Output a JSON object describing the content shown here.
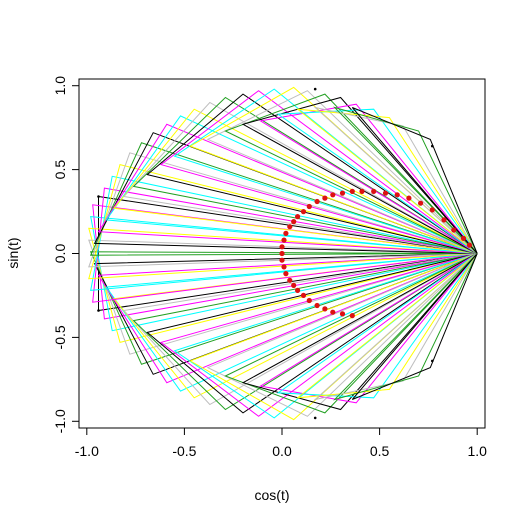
{
  "chart_data": {
    "type": "line",
    "title": "",
    "xlabel": "cos(t)",
    "ylabel": "sin(t)",
    "xlim": [
      -1.04,
      1.04
    ],
    "ylim": [
      -1.04,
      1.04
    ],
    "x_ticks": [
      -1.0,
      -0.5,
      0.0,
      0.5,
      1.0
    ],
    "y_ticks": [
      -1.0,
      -0.5,
      0.0,
      0.5,
      1.0
    ],
    "x_tick_labels": [
      "-1.0",
      "-0.5",
      "0.0",
      "0.5",
      "1.0"
    ],
    "y_tick_labels": [
      "-1.0",
      "-0.5",
      "0.0",
      "0.5",
      "1.0"
    ],
    "grid": false,
    "legend": "none",
    "triangle_apex": [
      1.0,
      0.0
    ],
    "triangle_base_endpoints": [
      [
        [
          -0.94,
          0.34
        ],
        [
          -0.94,
          -0.34
        ]
      ],
      [
        [
          -0.97,
          0.29
        ],
        [
          -0.91,
          -0.39
        ]
      ],
      [
        [
          -0.98,
          0.22
        ],
        [
          -0.87,
          -0.46
        ]
      ],
      [
        [
          -0.99,
          0.15
        ],
        [
          -0.83,
          -0.53
        ]
      ],
      [
        [
          -0.99,
          0.08
        ],
        [
          -0.78,
          -0.6
        ]
      ],
      [
        [
          -0.98,
          0.01
        ],
        [
          -0.72,
          -0.66
        ]
      ],
      [
        [
          -0.96,
          -0.06
        ],
        [
          -0.66,
          -0.72
        ]
      ],
      [
        [
          -0.94,
          -0.13
        ],
        [
          -0.59,
          -0.77
        ]
      ],
      [
        [
          -0.9,
          -0.2
        ],
        [
          -0.52,
          -0.82
        ]
      ],
      [
        [
          -0.86,
          -0.27
        ],
        [
          -0.45,
          -0.86
        ]
      ],
      [
        [
          -0.81,
          -0.34
        ],
        [
          -0.37,
          -0.9
        ]
      ],
      [
        [
          -0.76,
          -0.4
        ],
        [
          -0.29,
          -0.93
        ]
      ],
      [
        [
          -0.69,
          -0.47
        ],
        [
          -0.2,
          -0.95
        ]
      ],
      [
        [
          -0.62,
          -0.53
        ],
        [
          -0.12,
          -0.97
        ]
      ],
      [
        [
          -0.55,
          -0.58
        ],
        [
          -0.04,
          -0.98
        ]
      ],
      [
        [
          -0.47,
          -0.64
        ],
        [
          0.06,
          -0.99
        ]
      ],
      [
        [
          -0.38,
          -0.68
        ],
        [
          0.13,
          -0.97
        ]
      ],
      [
        [
          -0.29,
          -0.73
        ],
        [
          0.22,
          -0.95
        ]
      ],
      [
        [
          -0.2,
          -0.77
        ],
        [
          0.3,
          -0.93
        ]
      ],
      [
        [
          -0.11,
          -0.79
        ],
        [
          0.38,
          -0.89
        ]
      ],
      [
        [
          -0.02,
          -0.83
        ],
        [
          0.47,
          -0.86
        ]
      ],
      [
        [
          0.08,
          -0.86
        ],
        [
          0.55,
          -0.81
        ]
      ],
      [
        [
          0.17,
          -0.87
        ],
        [
          0.62,
          -0.76
        ]
      ],
      [
        [
          0.27,
          -0.87
        ],
        [
          0.7,
          -0.73
        ]
      ],
      [
        [
          0.36,
          -0.87
        ],
        [
          0.76,
          -0.68
        ]
      ],
      [
        [
          -0.97,
          -0.29
        ],
        [
          -0.91,
          0.39
        ]
      ],
      [
        [
          -0.98,
          -0.22
        ],
        [
          -0.87,
          0.46
        ]
      ],
      [
        [
          -0.99,
          -0.15
        ],
        [
          -0.83,
          0.53
        ]
      ],
      [
        [
          -0.99,
          -0.08
        ],
        [
          -0.78,
          0.6
        ]
      ],
      [
        [
          -0.98,
          -0.01
        ],
        [
          -0.72,
          0.66
        ]
      ],
      [
        [
          -0.96,
          0.06
        ],
        [
          -0.66,
          0.72
        ]
      ],
      [
        [
          -0.94,
          0.13
        ],
        [
          -0.59,
          0.77
        ]
      ],
      [
        [
          -0.9,
          0.2
        ],
        [
          -0.52,
          0.82
        ]
      ],
      [
        [
          -0.86,
          0.27
        ],
        [
          -0.45,
          0.86
        ]
      ],
      [
        [
          -0.81,
          0.34
        ],
        [
          -0.37,
          0.9
        ]
      ],
      [
        [
          -0.76,
          0.4
        ],
        [
          -0.29,
          0.93
        ]
      ],
      [
        [
          -0.69,
          0.47
        ],
        [
          -0.2,
          0.95
        ]
      ],
      [
        [
          -0.62,
          0.53
        ],
        [
          -0.12,
          0.97
        ]
      ],
      [
        [
          -0.55,
          0.58
        ],
        [
          -0.04,
          0.98
        ]
      ],
      [
        [
          -0.47,
          0.64
        ],
        [
          0.06,
          0.99
        ]
      ],
      [
        [
          -0.38,
          0.68
        ],
        [
          0.13,
          0.97
        ]
      ],
      [
        [
          -0.29,
          0.73
        ],
        [
          0.22,
          0.95
        ]
      ],
      [
        [
          -0.2,
          0.77
        ],
        [
          0.3,
          0.93
        ]
      ],
      [
        [
          -0.11,
          0.79
        ],
        [
          0.38,
          0.89
        ]
      ],
      [
        [
          -0.02,
          0.83
        ],
        [
          0.47,
          0.86
        ]
      ],
      [
        [
          0.08,
          0.86
        ],
        [
          0.55,
          0.81
        ]
      ],
      [
        [
          0.17,
          0.87
        ],
        [
          0.62,
          0.76
        ]
      ],
      [
        [
          0.27,
          0.87
        ],
        [
          0.7,
          0.73
        ]
      ],
      [
        [
          0.36,
          0.87
        ],
        [
          0.76,
          0.68
        ]
      ]
    ],
    "line_color_cycle": [
      "#000000",
      "#ff00ff",
      "#00ffff",
      "#ffff00",
      "#bebebe",
      "#22a022"
    ],
    "red_points": [
      [
        0.0,
        0.0
      ],
      [
        0.0,
        0.04
      ],
      [
        0.0,
        -0.04
      ],
      [
        0.01,
        0.08
      ],
      [
        0.01,
        -0.08
      ],
      [
        0.02,
        0.12
      ],
      [
        0.02,
        -0.12
      ],
      [
        0.04,
        0.16
      ],
      [
        0.04,
        -0.16
      ],
      [
        0.06,
        0.19
      ],
      [
        0.06,
        -0.19
      ],
      [
        0.08,
        0.22
      ],
      [
        0.08,
        -0.22
      ],
      [
        0.11,
        0.25
      ],
      [
        0.11,
        -0.25
      ],
      [
        0.14,
        0.28
      ],
      [
        0.14,
        -0.28
      ],
      [
        0.18,
        0.31
      ],
      [
        0.18,
        -0.31
      ],
      [
        0.22,
        0.33
      ],
      [
        0.22,
        -0.33
      ],
      [
        0.26,
        0.35
      ],
      [
        0.26,
        -0.35
      ],
      [
        0.31,
        0.36
      ],
      [
        0.31,
        -0.36
      ],
      [
        0.36,
        0.37
      ],
      [
        0.36,
        -0.37
      ],
      [
        0.41,
        0.37
      ],
      [
        0.47,
        0.37
      ],
      [
        0.53,
        0.36
      ],
      [
        0.59,
        0.35
      ],
      [
        0.65,
        0.33
      ],
      [
        0.71,
        0.3
      ],
      [
        0.77,
        0.26
      ],
      [
        0.83,
        0.2
      ],
      [
        0.88,
        0.14
      ],
      [
        0.93,
        0.09
      ],
      [
        0.96,
        0.05
      ]
    ],
    "red_point_color": "#dd1111",
    "black_points": [
      [
        0.17,
        0.98
      ],
      [
        0.77,
        0.64
      ],
      [
        -0.94,
        0.34
      ],
      [
        -0.94,
        -0.34
      ],
      [
        0.77,
        -0.64
      ],
      [
        0.17,
        -0.98
      ]
    ]
  }
}
